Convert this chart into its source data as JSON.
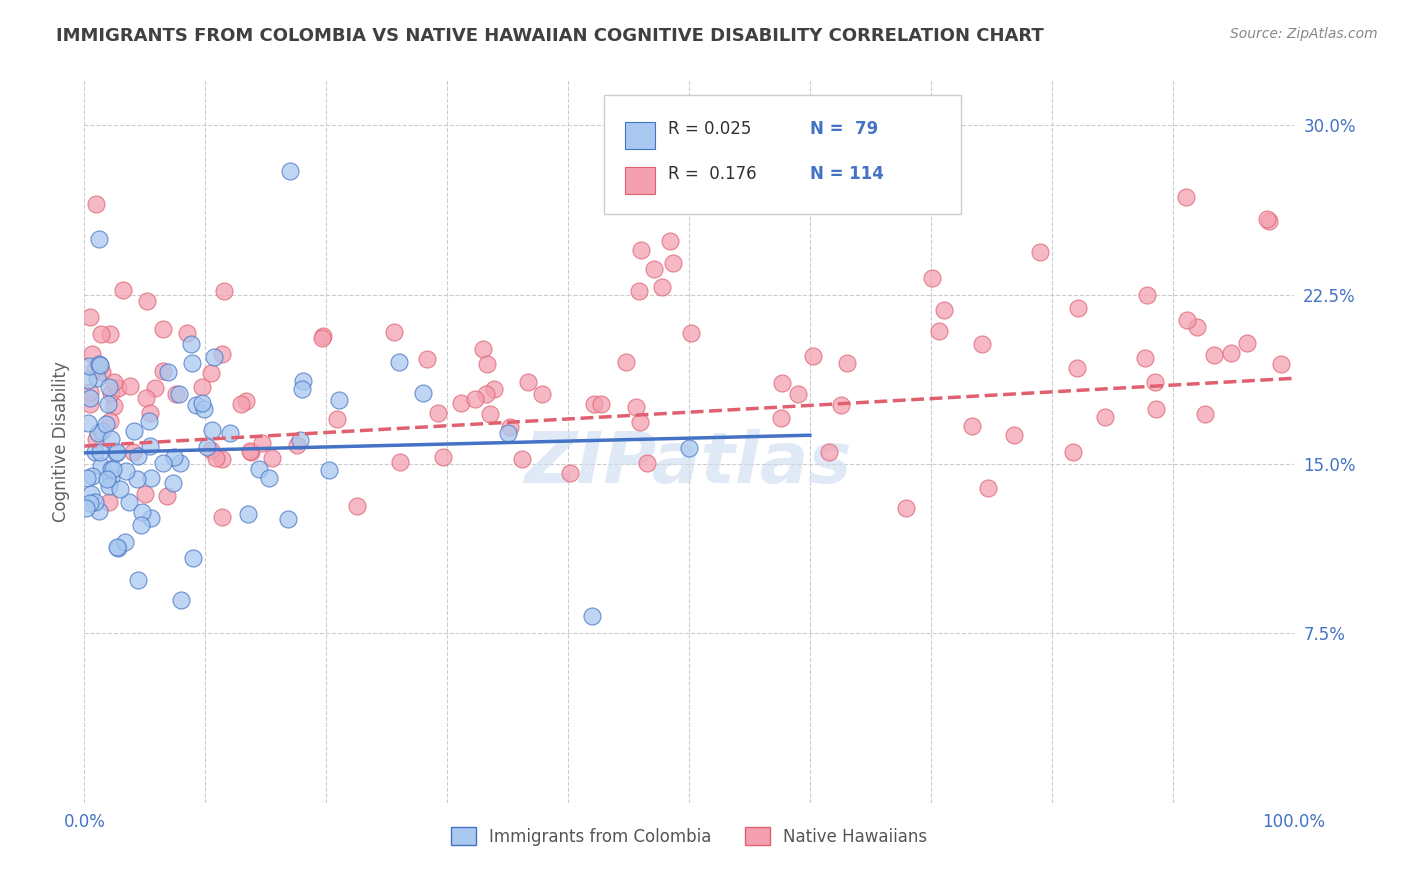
{
  "title": "IMMIGRANTS FROM COLOMBIA VS NATIVE HAWAIIAN COGNITIVE DISABILITY CORRELATION CHART",
  "source": "Source: ZipAtlas.com",
  "ylabel": "Cognitive Disability",
  "xlim": [
    0.0,
    1.0
  ],
  "ylim": [
    0.0,
    0.32
  ],
  "xticks": [
    0.0,
    0.1,
    0.2,
    0.3,
    0.4,
    0.5,
    0.6,
    0.7,
    0.8,
    0.9,
    1.0
  ],
  "xticklabels": [
    "0.0%",
    "",
    "",
    "",
    "",
    "",
    "",
    "",
    "",
    "",
    "100.0%"
  ],
  "yticks": [
    0.0,
    0.075,
    0.15,
    0.225,
    0.3
  ],
  "yticklabels": [
    "",
    "7.5%",
    "15.0%",
    "22.5%",
    "30.0%"
  ],
  "colombia_R": 0.025,
  "colombia_N": 79,
  "hawaii_R": 0.176,
  "hawaii_N": 114,
  "colombia_color": "#a8c8f0",
  "hawaii_color": "#f4a0b0",
  "colombia_line_color": "#4472c4",
  "hawaii_line_color": "#e06070",
  "legend_border_color": "#cccccc",
  "grid_color": "#cccccc",
  "title_color": "#404040",
  "axis_label_color": "#4472c4",
  "watermark_color": "#c8d8f0",
  "legend_text_color": "#303030",
  "legend_N_color": "#4472c4"
}
